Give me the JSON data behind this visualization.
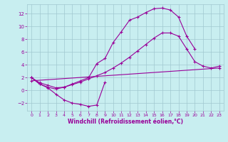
{
  "xlabel": "Windchill (Refroidissement éolien,°C)",
  "bg_color": "#c8eef0",
  "grid_color": "#a0c8d0",
  "line_color": "#990099",
  "xlim": [
    -0.5,
    23.5
  ],
  "ylim": [
    -3.2,
    13.5
  ],
  "xticks": [
    0,
    1,
    2,
    3,
    4,
    5,
    6,
    7,
    8,
    9,
    10,
    11,
    12,
    13,
    14,
    15,
    16,
    17,
    18,
    19,
    20,
    21,
    22,
    23
  ],
  "yticks": [
    -2,
    0,
    2,
    4,
    6,
    8,
    10,
    12
  ],
  "line1_x": [
    0,
    1,
    2,
    3,
    4,
    5,
    6,
    7,
    8,
    9
  ],
  "line1_y": [
    2.0,
    1.0,
    0.4,
    -0.6,
    -1.5,
    -2.0,
    -2.2,
    -2.5,
    -2.3,
    1.3
  ],
  "line2_x": [
    0,
    1,
    2,
    3,
    4,
    5,
    6,
    7,
    8,
    9,
    10,
    11,
    12,
    13,
    14,
    15,
    16,
    17,
    18,
    19,
    20,
    21,
    22,
    23
  ],
  "line2_y": [
    2.0,
    1.2,
    0.8,
    0.4,
    0.5,
    0.9,
    1.3,
    1.8,
    2.3,
    2.8,
    3.5,
    4.3,
    5.2,
    6.2,
    7.2,
    8.2,
    9.0,
    9.0,
    8.5,
    6.5,
    4.5,
    3.8,
    3.5,
    3.8
  ],
  "line3_x": [
    0,
    1,
    2,
    3,
    4,
    5,
    6,
    7,
    8,
    9,
    10,
    11,
    12,
    13,
    14,
    15,
    16,
    17,
    18,
    19,
    20
  ],
  "line3_y": [
    2.0,
    1.0,
    0.5,
    0.2,
    0.5,
    1.0,
    1.5,
    2.0,
    4.2,
    5.0,
    7.5,
    9.2,
    11.0,
    11.5,
    12.2,
    12.8,
    12.9,
    12.6,
    11.5,
    8.5,
    6.5
  ],
  "line4_x": [
    0,
    23
  ],
  "line4_y": [
    1.5,
    3.5
  ]
}
